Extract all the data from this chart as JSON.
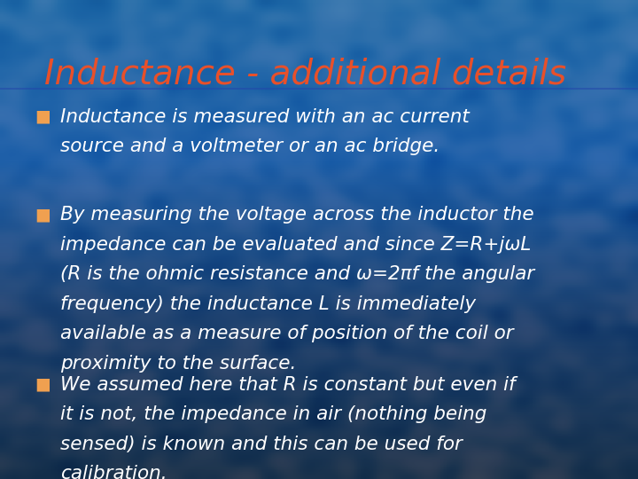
{
  "title": "Inductance - additional details",
  "title_color": "#E8502A",
  "title_fontsize": 28,
  "title_fontstyle": "normal",
  "bg_color_top": "#0d1f4a",
  "bg_color_mid": "#1a5a9a",
  "bg_color_bottom": "#1a4a8a",
  "bullet_color": "#F0A050",
  "text_color": "#FFFFFF",
  "bullet_char": "■",
  "bullets": [
    {
      "lines": [
        "Inductance is measured with an ac current",
        "source and a voltmeter or an ac bridge."
      ]
    },
    {
      "lines": [
        "By measuring the voltage across the inductor the",
        "impedance can be evaluated and since Z=R+jωL",
        "(R is the ohmic resistance and ω=2πf the angular",
        "frequency) the inductance L is immediately",
        "available as a measure of position of the coil or",
        "proximity to the surface."
      ]
    },
    {
      "lines": [
        "We assumed here that R is constant but even if",
        "it is not, the impedance in air (nothing being",
        "sensed) is known and this can be used for",
        "calibration."
      ]
    }
  ],
  "text_fontsize": 15.5,
  "figwidth": 7.2,
  "figheight": 5.4,
  "dpi": 100
}
